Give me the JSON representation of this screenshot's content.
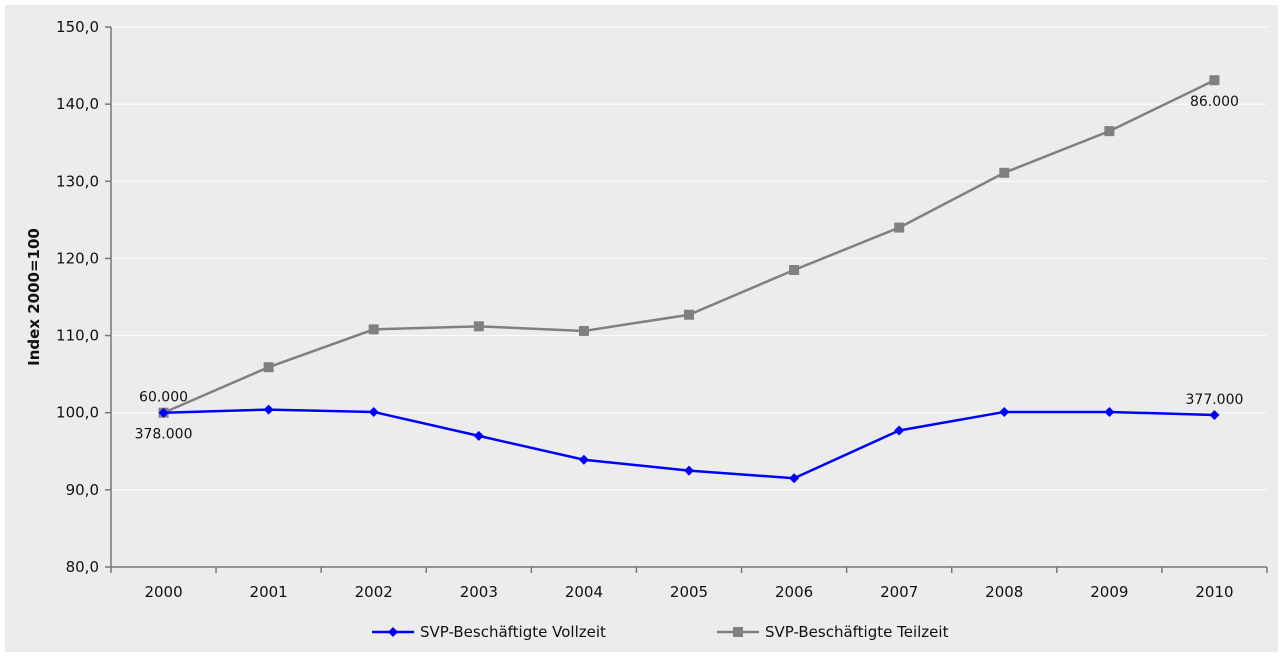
{
  "chart_data": {
    "type": "line",
    "title": "",
    "xlabel": "",
    "ylabel": "Index 2000=100",
    "ylim": [
      80,
      150
    ],
    "y_ticks": [
      "80,0",
      "90,0",
      "100,0",
      "110,0",
      "120,0",
      "130,0",
      "140,0",
      "150,0"
    ],
    "categories": [
      "2000",
      "2001",
      "2002",
      "2003",
      "2004",
      "2005",
      "2006",
      "2007",
      "2008",
      "2009",
      "2010"
    ],
    "grid": "horizontal",
    "legend_position": "bottom",
    "series": [
      {
        "name": "SVP-Beschäftigte Vollzeit",
        "color": "#0000ff",
        "marker": "diamond",
        "values": [
          100.0,
          100.4,
          100.1,
          97.0,
          93.9,
          92.5,
          91.5,
          97.7,
          100.1,
          100.1,
          99.7
        ],
        "labels": [
          {
            "index": 0,
            "text": "378.000",
            "position": "below"
          },
          {
            "index": 10,
            "text": "377.000",
            "position": "above"
          }
        ]
      },
      {
        "name": "SVP-Beschäftigte Teilzeit",
        "color": "#808080",
        "marker": "square",
        "values": [
          100.0,
          105.9,
          110.8,
          111.2,
          110.6,
          112.7,
          118.5,
          124.0,
          131.1,
          136.5,
          143.1
        ],
        "labels": [
          {
            "index": 0,
            "text": "60.000",
            "position": "above"
          },
          {
            "index": 10,
            "text": "86.000",
            "position": "below"
          }
        ]
      }
    ]
  }
}
